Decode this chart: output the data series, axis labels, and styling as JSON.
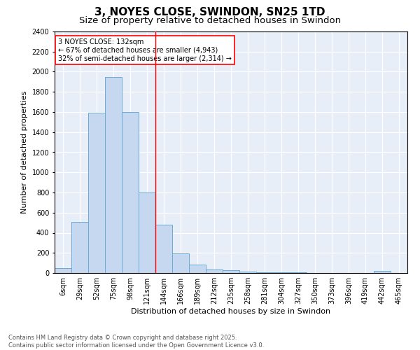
{
  "title": "3, NOYES CLOSE, SWINDON, SN25 1TD",
  "subtitle": "Size of property relative to detached houses in Swindon",
  "xlabel": "Distribution of detached houses by size in Swindon",
  "ylabel": "Number of detached properties",
  "categories": [
    "6sqm",
    "29sqm",
    "52sqm",
    "75sqm",
    "98sqm",
    "121sqm",
    "144sqm",
    "166sqm",
    "189sqm",
    "212sqm",
    "235sqm",
    "258sqm",
    "281sqm",
    "304sqm",
    "327sqm",
    "350sqm",
    "373sqm",
    "396sqm",
    "419sqm",
    "442sqm",
    "465sqm"
  ],
  "values": [
    50,
    510,
    1590,
    1950,
    1600,
    800,
    480,
    195,
    85,
    35,
    25,
    15,
    10,
    5,
    5,
    0,
    0,
    0,
    0,
    20,
    0
  ],
  "bar_color": "#c5d8f0",
  "bar_edge_color": "#6aaad4",
  "background_color": "#e8eef8",
  "grid_color": "#ffffff",
  "vline_x_index": 5,
  "vline_color": "red",
  "annotation_text": "3 NOYES CLOSE: 132sqm\n← 67% of detached houses are smaller (4,943)\n32% of semi-detached houses are larger (2,314) →",
  "annotation_box_color": "white",
  "annotation_box_edge_color": "red",
  "ylim": [
    0,
    2400
  ],
  "yticks": [
    0,
    200,
    400,
    600,
    800,
    1000,
    1200,
    1400,
    1600,
    1800,
    2000,
    2200,
    2400
  ],
  "footer_text": "Contains HM Land Registry data © Crown copyright and database right 2025.\nContains public sector information licensed under the Open Government Licence v3.0.",
  "title_fontsize": 11,
  "subtitle_fontsize": 9.5,
  "axis_label_fontsize": 8,
  "tick_fontsize": 7,
  "annotation_fontsize": 7,
  "footer_fontsize": 6
}
